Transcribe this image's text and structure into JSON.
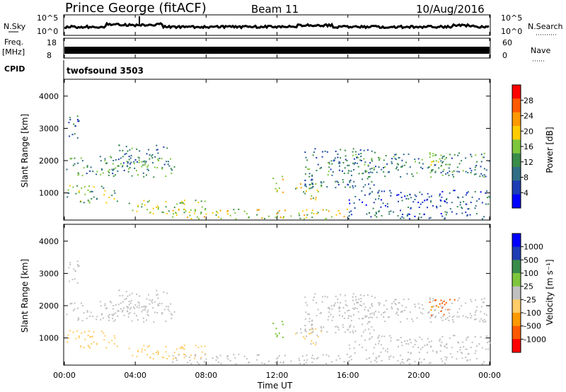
{
  "header": {
    "station": "Prince George (fitACF)",
    "beam": "Beam 11",
    "date": "10/Aug/2016"
  },
  "panels": {
    "nsky": {
      "left_label": "N.Sky",
      "right_label": "N.Search",
      "left_ticks": [
        "10^5",
        "10^0"
      ],
      "right_ticks": [
        "10^5",
        "10^0"
      ]
    },
    "freq": {
      "left_label_top": "Freq.",
      "left_label_bottom": "[MHz]",
      "right_label": "Nave",
      "left_ticks": [
        "18",
        "8"
      ],
      "right_ticks": [
        "60",
        "0"
      ]
    },
    "cpid": {
      "label": "CPID",
      "program": "twofsound 3503"
    }
  },
  "chart_data": [
    {
      "type": "heatmap",
      "title": "",
      "xlabel": "Time UT",
      "ylabel": "Slant Range [km]",
      "x_ticks": [
        "00:00",
        "04:00",
        "08:00",
        "12:00",
        "16:00",
        "20:00",
        "00:00"
      ],
      "xlim_hours": [
        0,
        24
      ],
      "ylim": [
        180,
        4500
      ],
      "y_ticks": [
        1000,
        2000,
        3000,
        4000
      ],
      "colorbar_label": "Power [dB]",
      "colorbar_ticks": [
        28,
        24,
        20,
        16,
        12,
        8,
        4
      ],
      "colorbar_range": [
        0,
        30
      ],
      "colors": [
        "#0000ff",
        "#1e3cb4",
        "#2f6e86",
        "#3a8c4a",
        "#7ec63c",
        "#ffcc00",
        "#ff9900",
        "#ff5a00",
        "#ff0000"
      ],
      "regions": [
        {
          "t0": 0.1,
          "t1": 6.2,
          "r0": 1500,
          "r1": 2150,
          "p": 11
        },
        {
          "t0": 3.0,
          "t1": 6.0,
          "r0": 1800,
          "r1": 2500,
          "p": 10
        },
        {
          "t0": 0.1,
          "t1": 3.0,
          "r0": 700,
          "r1": 1250,
          "p": 14
        },
        {
          "t0": 3.5,
          "t1": 8.0,
          "r0": 350,
          "r1": 800,
          "p": 15
        },
        {
          "t0": 6.0,
          "t1": 16.0,
          "r0": 200,
          "r1": 520,
          "p": 17
        },
        {
          "t0": 16.0,
          "t1": 24.0,
          "r0": 200,
          "r1": 480,
          "p": 8
        },
        {
          "t0": 11.7,
          "t1": 12.3,
          "r0": 1000,
          "r1": 1600,
          "p": 18
        },
        {
          "t0": 13.0,
          "t1": 14.5,
          "r0": 800,
          "r1": 1400,
          "p": 16
        },
        {
          "t0": 13.5,
          "t1": 17.5,
          "r0": 1150,
          "r1": 2400,
          "p": 9
        },
        {
          "t0": 16.0,
          "t1": 24.0,
          "r0": 1500,
          "r1": 2300,
          "p": 10
        },
        {
          "t0": 20.5,
          "t1": 22.0,
          "r0": 1700,
          "r1": 2250,
          "p": 14
        },
        {
          "t0": 16.0,
          "t1": 24.0,
          "r0": 500,
          "r1": 1100,
          "p": 6
        },
        {
          "t0": 0.2,
          "t1": 1.0,
          "r0": 2700,
          "r1": 3400,
          "p": 8
        }
      ]
    },
    {
      "type": "heatmap",
      "title": "",
      "xlabel": "Time UT",
      "ylabel": "Slant Range [km]",
      "x_ticks": [
        "00:00",
        "04:00",
        "08:00",
        "12:00",
        "16:00",
        "20:00",
        "00:00"
      ],
      "xlim_hours": [
        0,
        24
      ],
      "ylim": [
        180,
        4500
      ],
      "y_ticks": [
        1000,
        2000,
        3000,
        4000
      ],
      "colorbar_label": "Velocity [m s⁻¹]",
      "colorbar_ticks": [
        "1000",
        "500",
        "100",
        "25",
        "-25",
        "-100",
        "-500",
        "-1000"
      ],
      "colorbar_range": [
        -1200,
        1200
      ],
      "colors": [
        "#ff0000",
        "#ff5a00",
        "#ff9900",
        "#ffcc66",
        "#c0c0c0",
        "#7ec63c",
        "#3a8c4a",
        "#1e3cb4",
        "#0000ff"
      ],
      "regions": [
        {
          "t0": 0.1,
          "t1": 6.2,
          "r0": 1500,
          "r1": 2150,
          "v": 0
        },
        {
          "t0": 3.0,
          "t1": 6.0,
          "r0": 1800,
          "r1": 2500,
          "v": 0
        },
        {
          "t0": 0.1,
          "t1": 3.0,
          "r0": 700,
          "r1": 1250,
          "v": -300
        },
        {
          "t0": 3.5,
          "t1": 8.0,
          "r0": 350,
          "r1": 800,
          "v": -200
        },
        {
          "t0": 6.0,
          "t1": 16.0,
          "r0": 200,
          "r1": 520,
          "v": 60
        },
        {
          "t0": 16.0,
          "t1": 24.0,
          "r0": 200,
          "r1": 480,
          "v": 0
        },
        {
          "t0": 11.7,
          "t1": 12.3,
          "r0": 1000,
          "r1": 1600,
          "v": 250
        },
        {
          "t0": 13.0,
          "t1": 14.5,
          "r0": 800,
          "r1": 1400,
          "v": -150
        },
        {
          "t0": 13.5,
          "t1": 17.5,
          "r0": 1150,
          "r1": 2400,
          "v": -60
        },
        {
          "t0": 16.0,
          "t1": 24.0,
          "r0": 1500,
          "r1": 2300,
          "v": 0
        },
        {
          "t0": 20.5,
          "t1": 22.0,
          "r0": 1700,
          "r1": 2250,
          "v": -700
        },
        {
          "t0": 16.0,
          "t1": 24.0,
          "r0": 500,
          "r1": 1100,
          "v": -20
        },
        {
          "t0": 0.2,
          "t1": 1.0,
          "r0": 2700,
          "r1": 3400,
          "v": 0
        }
      ]
    }
  ]
}
